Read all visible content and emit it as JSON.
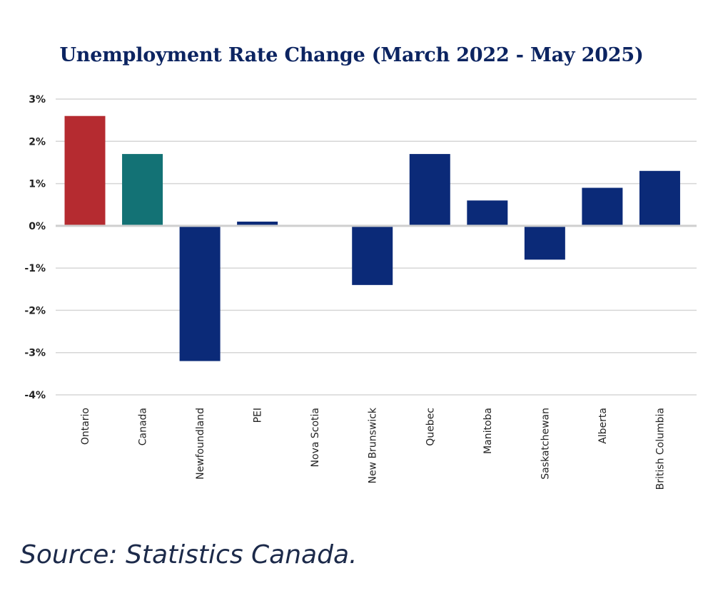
{
  "chart_data": {
    "type": "bar",
    "title": "Unemployment Rate Change (March 2022 - May 2025)",
    "xlabel": "",
    "ylabel": "",
    "categories": [
      "Ontario",
      "Canada",
      "Newfoundland",
      "PEI",
      "Nova Scotia",
      "New Brunswick",
      "Quebec",
      "Manitoba",
      "Saskatchewan",
      "Alberta",
      "British Columbia"
    ],
    "values": [
      2.6,
      1.7,
      -3.2,
      0.1,
      0.0,
      -1.4,
      1.7,
      0.6,
      -0.8,
      0.9,
      1.3
    ],
    "unit": "%",
    "ylim": [
      -4,
      3
    ],
    "yticks": [
      3,
      2,
      1,
      0,
      -1,
      -2,
      -3,
      -4
    ],
    "ytick_labels": [
      "3%",
      "2%",
      "1%",
      "0%",
      "-1%",
      "-2%",
      "-3%",
      "-4%"
    ],
    "grid": true,
    "bar_colors": [
      "#b52b30",
      "#137275",
      "#0b2a78",
      "#0b2a78",
      "#0b2a78",
      "#0b2a78",
      "#0b2a78",
      "#0b2a78",
      "#0b2a78",
      "#0b2a78",
      "#0b2a78"
    ]
  },
  "source": "Source: Statistics Canada."
}
